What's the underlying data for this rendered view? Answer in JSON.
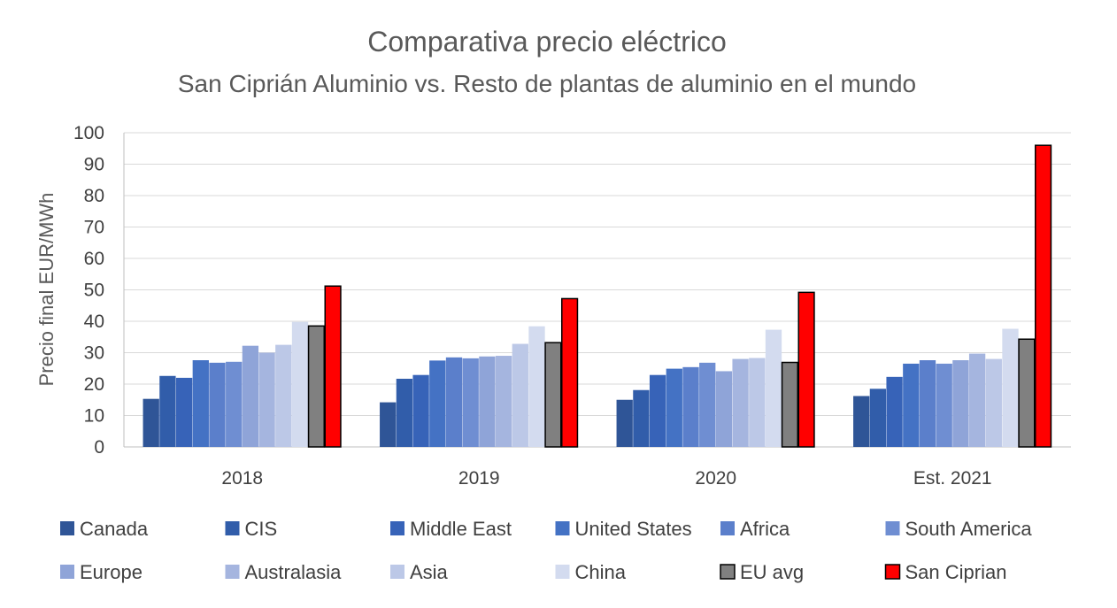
{
  "chart_data": {
    "type": "bar",
    "title": "Comparativa precio eléctrico",
    "subtitle": "San Ciprián Aluminio vs. Resto de plantas de aluminio en el mundo",
    "ylabel": "Precio final EUR/MWh",
    "xlabel": "",
    "ylim": [
      0,
      100
    ],
    "yticks": [
      0,
      10,
      20,
      30,
      40,
      50,
      60,
      70,
      80,
      90,
      100
    ],
    "grid": true,
    "legend_position": "bottom",
    "categories": [
      "2018",
      "2019",
      "2020",
      "Est. 2021"
    ],
    "series": [
      {
        "name": "Canada",
        "color": "#2F5597",
        "values": [
          15.3,
          14.2,
          15.0,
          16.2
        ]
      },
      {
        "name": "CIS",
        "color": "#315DAA",
        "values": [
          22.6,
          21.7,
          18.1,
          18.5
        ]
      },
      {
        "name": "Middle East",
        "color": "#3763B8",
        "values": [
          22.0,
          22.9,
          22.9,
          22.3
        ]
      },
      {
        "name": "United States",
        "color": "#4472C4",
        "values": [
          27.6,
          27.5,
          24.9,
          26.5
        ]
      },
      {
        "name": "Africa",
        "color": "#5B7FCB",
        "values": [
          26.8,
          28.5,
          25.4,
          27.6
        ]
      },
      {
        "name": "South America",
        "color": "#6F8ED2",
        "values": [
          27.1,
          28.2,
          26.8,
          26.5
        ]
      },
      {
        "name": "Europe",
        "color": "#8FA4D8",
        "values": [
          32.2,
          28.8,
          24.1,
          27.6
        ]
      },
      {
        "name": "Australasia",
        "color": "#A5B5DF",
        "values": [
          30.0,
          29.0,
          28.0,
          29.7
        ]
      },
      {
        "name": "Asia",
        "color": "#BCC8E7",
        "values": [
          32.5,
          32.8,
          28.3,
          28.0
        ]
      },
      {
        "name": "China",
        "color": "#D3DBEF",
        "values": [
          39.8,
          38.4,
          37.3,
          37.6
        ]
      },
      {
        "name": "EU avg",
        "color": "#808080",
        "values": [
          38.5,
          33.2,
          26.9,
          34.3
        ]
      },
      {
        "name": "San Ciprian",
        "color": "#FF0000",
        "values": [
          51.2,
          47.2,
          49.2,
          96.0
        ]
      }
    ]
  }
}
